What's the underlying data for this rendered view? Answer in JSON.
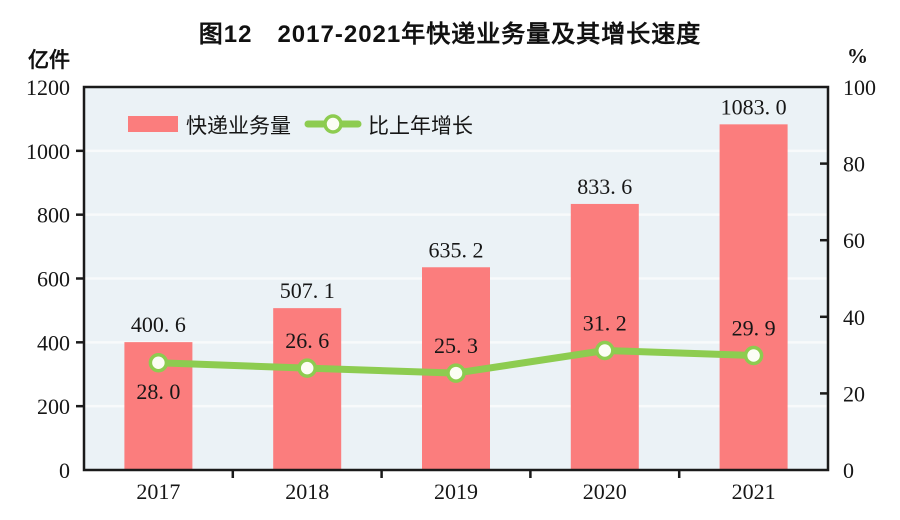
{
  "chart_data": {
    "type": "combo",
    "title": "图12　2017-2021年快递业务量及其增长速度",
    "categories": [
      "2017",
      "2018",
      "2019",
      "2020",
      "2021"
    ],
    "series": [
      {
        "name": "快递业务量",
        "type": "bar",
        "axis": "left",
        "color": "#FB7D7D",
        "values": [
          400.6,
          507.1,
          635.2,
          833.6,
          1083.0
        ],
        "labels": [
          "400. 6",
          "507. 1",
          "635. 2",
          "833. 6",
          "1083. 0"
        ]
      },
      {
        "name": "比上年增长",
        "type": "line",
        "axis": "right",
        "color": "#8DCC50",
        "marker": {
          "fill": "#FCFDF5",
          "stroke": "#8DCC50"
        },
        "values": [
          28.0,
          26.6,
          25.3,
          31.2,
          29.9
        ],
        "labels": [
          "28. 0",
          "26. 6",
          "25. 3",
          "31. 2",
          "29. 9"
        ],
        "label_positions": [
          "below",
          "above",
          "above",
          "above",
          "above"
        ]
      }
    ],
    "left_axis": {
      "unit": "亿件",
      "min": 0,
      "max": 1200,
      "step": 200,
      "tick_labels": [
        "0",
        "200",
        "400",
        "600",
        "800",
        "1000",
        "1200"
      ]
    },
    "right_axis": {
      "unit": "%",
      "min": 0,
      "max": 100,
      "step": 20,
      "tick_labels": [
        "0",
        "20",
        "40",
        "60",
        "80",
        "100"
      ]
    },
    "grid": true,
    "legend": {
      "position": "top-left-inside",
      "entries": [
        "快递业务量",
        "比上年增长"
      ]
    },
    "plot": {
      "bg": "#EBF2F6",
      "grid_color": "#F8FAFB",
      "axis_color": "#1A1A1A",
      "text_color": "#161616"
    }
  }
}
